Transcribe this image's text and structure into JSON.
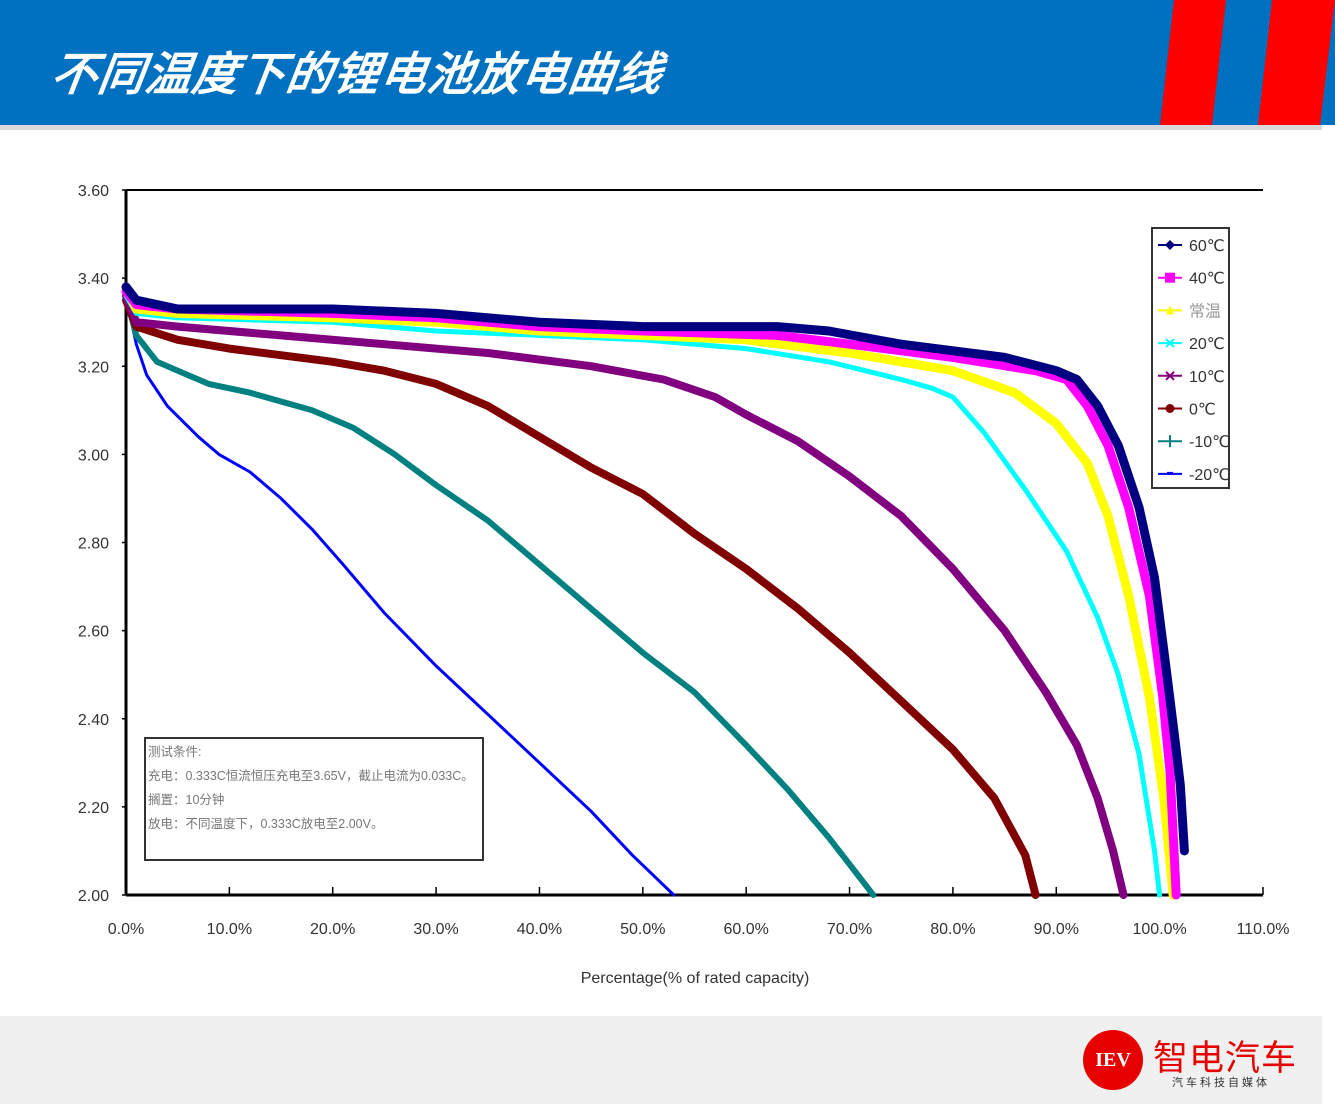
{
  "header": {
    "title": "不同温度下的锂电池放电曲线",
    "bg_color": "#0070c0",
    "stripe_color": "#ff0000"
  },
  "chart_data": {
    "type": "line",
    "title": "不同温度下的锂电池放电曲线",
    "xlabel": "Percentage(% of rated capacity)",
    "ylabel": "",
    "xlim": [
      0,
      110
    ],
    "ylim": [
      2.0,
      3.6
    ],
    "x_ticks": [
      "0.0%",
      "10.0%",
      "20.0%",
      "30.0%",
      "40.0%",
      "50.0%",
      "60.0%",
      "70.0%",
      "80.0%",
      "90.0%",
      "100.0%",
      "110.0%"
    ],
    "y_ticks": [
      "3.60",
      "3.40",
      "3.20",
      "3.00",
      "2.80",
      "2.60",
      "2.40",
      "2.20",
      "2.00"
    ],
    "grid": false,
    "legend_position": "upper-right",
    "series": [
      {
        "name": "60℃",
        "color": "#000080",
        "marker": "diamond",
        "points": [
          [
            0,
            3.38
          ],
          [
            1,
            3.35
          ],
          [
            5,
            3.33
          ],
          [
            20,
            3.33
          ],
          [
            30,
            3.32
          ],
          [
            40,
            3.3
          ],
          [
            50,
            3.29
          ],
          [
            63,
            3.29
          ],
          [
            68,
            3.28
          ],
          [
            75,
            3.25
          ],
          [
            85,
            3.22
          ],
          [
            90,
            3.19
          ],
          [
            92,
            3.17
          ],
          [
            94,
            3.11
          ],
          [
            96,
            3.02
          ],
          [
            98,
            2.88
          ],
          [
            99.5,
            2.72
          ],
          [
            100.7,
            2.5
          ],
          [
            101.5,
            2.35
          ],
          [
            102,
            2.25
          ],
          [
            102.4,
            2.1
          ]
        ]
      },
      {
        "name": "40℃",
        "color": "#ff00ff",
        "marker": "square",
        "points": [
          [
            0,
            3.37
          ],
          [
            1,
            3.34
          ],
          [
            5,
            3.33
          ],
          [
            20,
            3.32
          ],
          [
            30,
            3.31
          ],
          [
            40,
            3.29
          ],
          [
            50,
            3.28
          ],
          [
            63,
            3.27
          ],
          [
            70,
            3.25
          ],
          [
            80,
            3.22
          ],
          [
            88,
            3.19
          ],
          [
            91,
            3.17
          ],
          [
            93,
            3.11
          ],
          [
            95,
            3.02
          ],
          [
            97,
            2.88
          ],
          [
            99,
            2.68
          ],
          [
            100.3,
            2.45
          ],
          [
            101,
            2.28
          ],
          [
            101.6,
            2.0
          ]
        ]
      },
      {
        "name": "常温",
        "color": "#ffff00",
        "marker": "triangle",
        "points": [
          [
            0,
            3.38
          ],
          [
            1,
            3.33
          ],
          [
            5,
            3.32
          ],
          [
            20,
            3.31
          ],
          [
            30,
            3.3
          ],
          [
            40,
            3.28
          ],
          [
            50,
            3.27
          ],
          [
            60,
            3.26
          ],
          [
            70,
            3.23
          ],
          [
            80,
            3.19
          ],
          [
            86,
            3.14
          ],
          [
            90,
            3.07
          ],
          [
            93,
            2.98
          ],
          [
            95,
            2.86
          ],
          [
            97,
            2.68
          ],
          [
            99,
            2.45
          ],
          [
            100.4,
            2.22
          ],
          [
            101.3,
            2.0
          ]
        ]
      },
      {
        "name": "20℃",
        "color": "#00ffff",
        "marker": "asterisk",
        "points": [
          [
            0,
            3.36
          ],
          [
            1,
            3.32
          ],
          [
            5,
            3.31
          ],
          [
            20,
            3.3
          ],
          [
            30,
            3.28
          ],
          [
            40,
            3.27
          ],
          [
            50,
            3.26
          ],
          [
            60,
            3.24
          ],
          [
            68,
            3.21
          ],
          [
            75,
            3.17
          ],
          [
            78,
            3.15
          ],
          [
            80,
            3.13
          ],
          [
            83,
            3.05
          ],
          [
            87,
            2.92
          ],
          [
            91,
            2.78
          ],
          [
            94,
            2.63
          ],
          [
            96,
            2.5
          ],
          [
            98,
            2.32
          ],
          [
            99.5,
            2.1
          ],
          [
            100,
            2.0
          ]
        ]
      },
      {
        "name": "10℃",
        "color": "#800080",
        "marker": "asterisk",
        "points": [
          [
            0,
            3.36
          ],
          [
            1,
            3.3
          ],
          [
            5,
            3.29
          ],
          [
            15,
            3.27
          ],
          [
            25,
            3.25
          ],
          [
            35,
            3.23
          ],
          [
            45,
            3.2
          ],
          [
            52,
            3.17
          ],
          [
            57,
            3.13
          ],
          [
            60,
            3.09
          ],
          [
            65,
            3.03
          ],
          [
            70,
            2.95
          ],
          [
            75,
            2.86
          ],
          [
            80,
            2.74
          ],
          [
            85,
            2.6
          ],
          [
            89,
            2.46
          ],
          [
            92,
            2.34
          ],
          [
            94,
            2.22
          ],
          [
            95.5,
            2.1
          ],
          [
            96.5,
            2.0
          ]
        ]
      },
      {
        "name": "0℃",
        "color": "#800000",
        "marker": "circle",
        "points": [
          [
            0,
            3.35
          ],
          [
            1,
            3.29
          ],
          [
            5,
            3.26
          ],
          [
            10,
            3.24
          ],
          [
            20,
            3.21
          ],
          [
            25,
            3.19
          ],
          [
            30,
            3.16
          ],
          [
            35,
            3.11
          ],
          [
            40,
            3.04
          ],
          [
            45,
            2.97
          ],
          [
            50,
            2.91
          ],
          [
            55,
            2.82
          ],
          [
            60,
            2.74
          ],
          [
            65,
            2.65
          ],
          [
            70,
            2.55
          ],
          [
            75,
            2.44
          ],
          [
            80,
            2.33
          ],
          [
            84,
            2.22
          ],
          [
            87,
            2.09
          ],
          [
            88,
            2.0
          ]
        ]
      },
      {
        "name": "-10℃",
        "color": "#008080",
        "marker": "plus",
        "points": [
          [
            0,
            3.36
          ],
          [
            1,
            3.27
          ],
          [
            3,
            3.21
          ],
          [
            6,
            3.18
          ],
          [
            8,
            3.16
          ],
          [
            12,
            3.14
          ],
          [
            18,
            3.1
          ],
          [
            22,
            3.06
          ],
          [
            26,
            3.0
          ],
          [
            30,
            2.93
          ],
          [
            35,
            2.85
          ],
          [
            40,
            2.75
          ],
          [
            45,
            2.65
          ],
          [
            50,
            2.55
          ],
          [
            55,
            2.46
          ],
          [
            60,
            2.34
          ],
          [
            64,
            2.24
          ],
          [
            68,
            2.13
          ],
          [
            72.3,
            2.0
          ]
        ]
      },
      {
        "name": "-20℃",
        "color": "#0000ff",
        "marker": "dash",
        "points": [
          [
            0,
            3.36
          ],
          [
            1,
            3.25
          ],
          [
            2,
            3.18
          ],
          [
            4,
            3.11
          ],
          [
            7,
            3.04
          ],
          [
            9,
            3.0
          ],
          [
            12,
            2.96
          ],
          [
            15,
            2.9
          ],
          [
            18,
            2.83
          ],
          [
            21,
            2.75
          ],
          [
            25,
            2.64
          ],
          [
            30,
            2.52
          ],
          [
            35,
            2.41
          ],
          [
            40,
            2.3
          ],
          [
            45,
            2.19
          ],
          [
            49,
            2.09
          ],
          [
            53,
            2.0
          ]
        ]
      }
    ],
    "annotation": {
      "lines": [
        "测试条件:",
        "充电：0.333C恒流恒压充电至3.65V，截止电流为0.033C。",
        "搁置：10分钟",
        "放电：不同温度下，0.333C放电至2.00V。"
      ]
    }
  },
  "footer": {
    "logo_badge": "IEV",
    "logo_name": "智电汽车",
    "logo_tagline": "汽车科技自媒体"
  }
}
